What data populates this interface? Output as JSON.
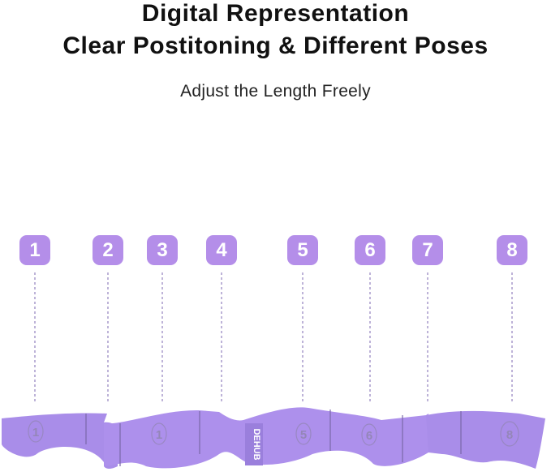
{
  "heading": {
    "line1": "Digital Representation",
    "line2": "Clear Postitoning & Different Poses"
  },
  "subtitle": "Adjust the Length Freely",
  "markers": [
    "1",
    "2",
    "3",
    "4",
    "5",
    "6",
    "7",
    "8"
  ],
  "band": {
    "brand": "DEHUB",
    "printed_numbers": [
      "1",
      "1",
      "5",
      "6",
      "8"
    ],
    "color": "#a98de9"
  },
  "colors": {
    "badge": "#b48ee9",
    "guide_line": "#9a8ac4"
  }
}
